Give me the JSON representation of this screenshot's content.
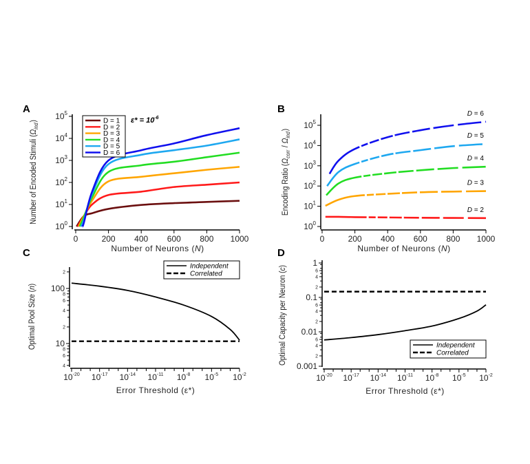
{
  "chart_data": [
    {
      "panel": "A",
      "type": "line",
      "xlabel": "Number of Neurons (N)",
      "ylabel": "Number of Encoded Stimuli (Ω_ind)",
      "xlim": [
        0,
        1000
      ],
      "ylim": [
        1,
        100000
      ],
      "yscale": "log",
      "xticks": [
        "0",
        "200",
        "400",
        "600",
        "800",
        "1000"
      ],
      "yticks": [
        "10^0",
        "10^1",
        "10^2",
        "10^3",
        "10^4",
        "10^5"
      ],
      "annotation": "ε* = 10^-6",
      "legend_position": "top-left",
      "series": [
        {
          "name": "D = 1",
          "color": "#6b0f0f",
          "x": [
            5,
            50,
            100,
            200,
            400,
            600,
            800,
            1000
          ],
          "y": [
            1,
            3,
            4,
            6.3,
            9.5,
            11.5,
            13,
            14.7
          ]
        },
        {
          "name": "D = 2",
          "color": "#ff1a1a",
          "x": [
            12,
            50,
            100,
            200,
            400,
            600,
            800,
            1000
          ],
          "y": [
            1,
            3,
            10,
            27,
            38,
            62,
            79,
            100
          ]
        },
        {
          "name": "D = 3",
          "color": "#ffa500",
          "x": [
            18,
            50,
            100,
            200,
            400,
            600,
            800,
            1000
          ],
          "y": [
            1,
            3,
            15,
            112,
            180,
            260,
            375,
            510
          ]
        },
        {
          "name": "D = 4",
          "color": "#22dd22",
          "x": [
            25,
            50,
            100,
            200,
            400,
            600,
            800,
            1000
          ],
          "y": [
            1,
            2.7,
            21,
            300,
            600,
            870,
            1400,
            2250
          ]
        },
        {
          "name": "D = 5",
          "color": "#1ea8f0",
          "x": [
            32,
            50,
            100,
            200,
            400,
            600,
            800,
            1000
          ],
          "y": [
            1,
            2,
            30,
            680,
            1800,
            2900,
            4700,
            9000
          ]
        },
        {
          "name": "D = 6",
          "color": "#1010ee",
          "x": [
            40,
            50,
            100,
            200,
            400,
            600,
            800,
            1000
          ],
          "y": [
            1,
            1.5,
            38,
            1000,
            2900,
            5900,
            14000,
            29000
          ]
        }
      ]
    },
    {
      "panel": "B",
      "type": "line",
      "xlabel": "Number of Neurons (N)",
      "ylabel": "Encoding Ratio (Ω_corr / Ω_ind)",
      "xlim": [
        0,
        1000
      ],
      "ylim": [
        1,
        100000
      ],
      "yscale": "log",
      "xticks": [
        "0",
        "200",
        "400",
        "600",
        "800",
        "1000"
      ],
      "yticks": [
        "10^0",
        "10^1",
        "10^2",
        "10^3",
        "10^4",
        "10^5"
      ],
      "series": [
        {
          "name": "D = 2",
          "color": "#ff1a1a",
          "x": [
            20,
            100,
            200,
            400,
            600,
            800,
            1000
          ],
          "y": [
            3.0,
            3.0,
            2.9,
            2.8,
            2.7,
            2.65,
            2.6
          ]
        },
        {
          "name": "D = 3",
          "color": "#ffa500",
          "x": [
            20,
            100,
            200,
            400,
            600,
            800,
            1000
          ],
          "y": [
            10.5,
            21,
            32,
            41,
            49,
            53,
            56
          ]
        },
        {
          "name": "D = 4",
          "color": "#22dd22",
          "x": [
            25,
            100,
            200,
            400,
            600,
            800,
            1000
          ],
          "y": [
            35,
            134,
            260,
            430,
            600,
            770,
            900
          ]
        },
        {
          "name": "D = 5",
          "color": "#1ea8f0",
          "x": [
            30,
            100,
            200,
            400,
            600,
            800,
            1000
          ],
          "y": [
            100,
            490,
            1230,
            3500,
            5900,
            9300,
            12000
          ]
        },
        {
          "name": "D = 6",
          "color": "#1010ee",
          "x": [
            45,
            100,
            200,
            400,
            600,
            800,
            1000
          ],
          "y": [
            400,
            1800,
            6800,
            26000,
            57000,
            100000,
            150000
          ]
        }
      ]
    },
    {
      "panel": "C",
      "type": "line",
      "xlabel": "Error Threshold (ε*)",
      "ylabel": "Optimal Pool Size (n)",
      "xscale": "log",
      "yscale": "log",
      "xlim": [
        "10^-20",
        "10^-2"
      ],
      "xticks": [
        "10^-20",
        "10^-17",
        "10^-14",
        "10^-11",
        "10^-8",
        "10^-5",
        "10^-2"
      ],
      "yticks": [
        "10",
        "100"
      ],
      "yminor": [
        "4",
        "6",
        "8",
        "2",
        "4",
        "6",
        "8",
        "2"
      ],
      "legend_position": "top-right",
      "series": [
        {
          "name": "Independent",
          "style": "solid",
          "color": "#000000",
          "x_exp": [
            -20,
            -17,
            -14,
            -11,
            -8,
            -5,
            -3,
            -2
          ],
          "y": [
            125,
            110,
            92,
            70,
            50,
            31,
            18,
            11.5
          ]
        },
        {
          "name": "Correlated",
          "style": "dashed",
          "color": "#000000",
          "x_exp": [
            -20,
            -2
          ],
          "y": [
            11,
            11
          ]
        }
      ]
    },
    {
      "panel": "D",
      "type": "line",
      "xlabel": "Error Threshold (ε*)",
      "ylabel": "Optimal Capacity per Neuron (c)",
      "xscale": "log",
      "yscale": "log",
      "xlim": [
        "10^-20",
        "10^-2"
      ],
      "xticks": [
        "10^-20",
        "10^-17",
        "10^-14",
        "10^-11",
        "10^-8",
        "10^-5",
        "10^-2"
      ],
      "yticks": [
        "0.001",
        "0.01",
        "0.1",
        "1"
      ],
      "yminor": [
        "2",
        "4",
        "6",
        "2",
        "4",
        "6",
        "2",
        "4",
        "6"
      ],
      "legend_position": "bottom-right",
      "series": [
        {
          "name": "Independent",
          "style": "solid",
          "color": "#000000",
          "x_exp": [
            -20,
            -17,
            -14,
            -11,
            -8,
            -5,
            -3,
            -2
          ],
          "y": [
            0.0058,
            0.0068,
            0.0083,
            0.0108,
            0.0147,
            0.0244,
            0.04,
            0.061
          ]
        },
        {
          "name": "Correlated",
          "style": "dashed",
          "color": "#000000",
          "x_exp": [
            -20,
            -2
          ],
          "y": [
            0.147,
            0.147
          ]
        }
      ]
    }
  ]
}
